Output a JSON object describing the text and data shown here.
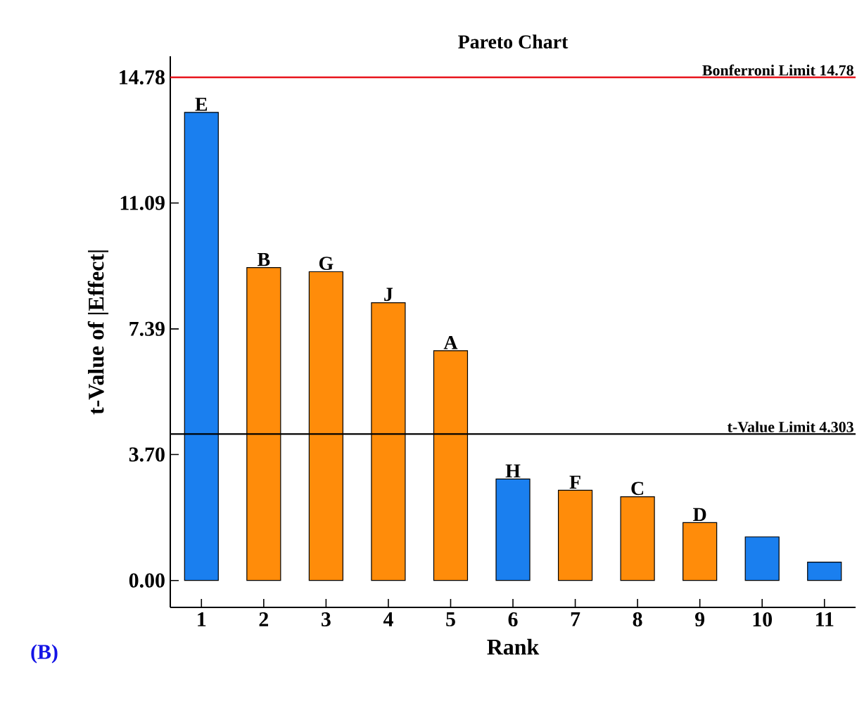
{
  "chart_data": {
    "type": "bar",
    "title": "Pareto Chart",
    "xlabel": "Rank",
    "ylabel": "t-Value of |Effect|",
    "categories": [
      "1",
      "2",
      "3",
      "4",
      "5",
      "6",
      "7",
      "8",
      "9",
      "10",
      "11"
    ],
    "values": [
      13.75,
      9.19,
      9.07,
      8.16,
      6.75,
      2.98,
      2.65,
      2.46,
      1.7,
      1.28,
      0.54
    ],
    "colors": [
      "#1a7fef",
      "#ff8c0a",
      "#ff8c0a",
      "#ff8c0a",
      "#ff8c0a",
      "#1a7fef",
      "#ff8c0a",
      "#ff8c0a",
      "#ff8c0a",
      "#1a7fef",
      "#1a7fef"
    ],
    "value_labels": [
      "E",
      "B",
      "G",
      "J",
      "A",
      "H",
      "F",
      "C",
      "D",
      null,
      null
    ],
    "ylim": [
      -0.79,
      15.4
    ],
    "yticks": [
      {
        "value": 0,
        "label": "0.00"
      },
      {
        "value": 3.7,
        "label": "3.70"
      },
      {
        "value": 7.39,
        "label": "7.39"
      },
      {
        "value": 11.09,
        "label": "11.09"
      },
      {
        "value": 14.78,
        "label": "14.78"
      }
    ],
    "ref_lines": [
      {
        "axis": "y",
        "value": 14.78,
        "label": "Bonferroni Limit 14.78",
        "color": "#e8141c"
      },
      {
        "axis": "y",
        "value": 4.303,
        "label": "t-Value Limit 4.303",
        "color": "#000000"
      }
    ],
    "annotations": [
      "(B)"
    ],
    "grid": false
  }
}
